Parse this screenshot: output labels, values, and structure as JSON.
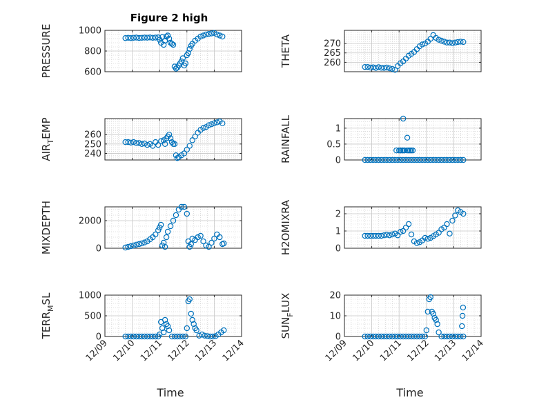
{
  "figure_title": "Figure 2 high",
  "colors": {
    "marker": "#0072BD",
    "axis": "#262626",
    "grid": "#c8c8c8"
  },
  "x_axis": {
    "label": "Time",
    "tick_labels": [
      "12/09",
      "12/10",
      "12/11",
      "12/12",
      "12/13",
      "12/14"
    ],
    "ticks_days": [
      9,
      10,
      11,
      12,
      13,
      14
    ],
    "range_days": [
      9,
      14
    ]
  },
  "chart_data": [
    {
      "type": "scatter",
      "ylabel": "PRESSURE",
      "ylim": [
        600,
        1000
      ],
      "yticks": [
        600,
        800,
        1000
      ],
      "ytick_labels": [
        "600",
        "800",
        "1000"
      ],
      "x": [
        9.75,
        9.85,
        9.95,
        10.05,
        10.15,
        10.25,
        10.35,
        10.45,
        10.55,
        10.65,
        10.75,
        10.85,
        10.95,
        11.0,
        11.05,
        11.1,
        11.15,
        11.2,
        11.25,
        11.3,
        11.35,
        11.4,
        11.45,
        11.5,
        11.55,
        11.6,
        11.65,
        11.7,
        11.75,
        11.8,
        11.85,
        11.9,
        11.95,
        12.0,
        12.05,
        12.1,
        12.15,
        12.2,
        12.3,
        12.4,
        12.5,
        12.6,
        12.7,
        12.8,
        12.9,
        13.0,
        13.1,
        13.2,
        13.3
      ],
      "y": [
        925,
        928,
        925,
        928,
        930,
        926,
        928,
        930,
        929,
        931,
        928,
        930,
        932,
        910,
        880,
        935,
        860,
        900,
        940,
        950,
        920,
        880,
        870,
        860,
        650,
        630,
        640,
        660,
        680,
        700,
        730,
        660,
        680,
        760,
        780,
        820,
        850,
        870,
        900,
        920,
        940,
        950,
        960,
        965,
        970,
        975,
        960,
        950,
        940
      ]
    },
    {
      "type": "scatter",
      "ylabel": "THETA",
      "ylim": [
        255,
        277
      ],
      "yticks": [
        260,
        265,
        270
      ],
      "ytick_labels": [
        "260",
        "265",
        "270"
      ],
      "x": [
        9.75,
        9.85,
        9.95,
        10.05,
        10.15,
        10.25,
        10.35,
        10.45,
        10.55,
        10.65,
        10.75,
        10.85,
        10.95,
        11.05,
        11.15,
        11.25,
        11.35,
        11.45,
        11.55,
        11.65,
        11.75,
        11.85,
        11.95,
        12.05,
        12.15,
        12.25,
        12.35,
        12.45,
        12.55,
        12.65,
        12.75,
        12.85,
        12.95,
        13.05,
        13.15,
        13.25,
        13.35
      ],
      "y": [
        257.5,
        257.5,
        257.2,
        257.3,
        257.0,
        257.4,
        257.1,
        257.0,
        257.2,
        256.8,
        256.5,
        256.0,
        258.0,
        259.5,
        260.5,
        262.0,
        263.5,
        264.5,
        265.5,
        267.0,
        268.5,
        269.5,
        270.0,
        271.0,
        272.5,
        274.5,
        273.0,
        272.0,
        271.5,
        271.0,
        270.5,
        270.5,
        270.2,
        270.5,
        270.8,
        271.0,
        270.8
      ]
    },
    {
      "type": "scatter",
      "ylabel": "AIR_TEMP",
      "ylim": [
        233,
        277
      ],
      "yticks": [
        240,
        250,
        260
      ],
      "ytick_labels": [
        "240",
        "250",
        "260"
      ],
      "x": [
        9.75,
        9.85,
        9.95,
        10.05,
        10.15,
        10.25,
        10.35,
        10.45,
        10.55,
        10.65,
        10.75,
        10.85,
        10.95,
        11.05,
        11.15,
        11.2,
        11.25,
        11.3,
        11.35,
        11.4,
        11.45,
        11.5,
        11.55,
        11.6,
        11.65,
        11.7,
        11.8,
        11.9,
        12.0,
        12.1,
        12.2,
        12.3,
        12.4,
        12.5,
        12.6,
        12.7,
        12.8,
        12.9,
        13.0,
        13.1,
        13.2,
        13.3
      ],
      "y": [
        252,
        252,
        251.5,
        252,
        251,
        251,
        250,
        250.5,
        249,
        250,
        248,
        252,
        249,
        253,
        254,
        250,
        256,
        258,
        260,
        256,
        252,
        250,
        250,
        238,
        235,
        236,
        238,
        240,
        244,
        248,
        254,
        258,
        262,
        265,
        267,
        268,
        270,
        271,
        272,
        273,
        274,
        272
      ]
    },
    {
      "type": "scatter",
      "ylabel": "RAINFALL",
      "ylim": [
        0,
        1.3
      ],
      "yticks": [
        0,
        0.5,
        1
      ],
      "ytick_labels": [
        "0",
        "0.5",
        "1"
      ],
      "x": [
        9.75,
        9.85,
        9.95,
        10.05,
        10.15,
        10.25,
        10.35,
        10.45,
        10.55,
        10.65,
        10.75,
        10.85,
        10.95,
        11.05,
        11.15,
        11.25,
        11.35,
        11.45,
        11.55,
        11.65,
        11.75,
        11.85,
        11.95,
        12.05,
        12.15,
        12.25,
        12.35,
        12.45,
        12.55,
        12.65,
        12.75,
        12.85,
        12.95,
        13.05,
        13.15,
        13.25,
        13.35,
        10.9,
        11.0,
        11.05,
        11.1,
        11.15,
        11.2,
        11.3,
        11.35,
        11.4,
        11.45,
        11.5,
        11.15,
        11.3
      ],
      "y": [
        0,
        0,
        0,
        0,
        0,
        0,
        0,
        0,
        0,
        0,
        0,
        0,
        0,
        0,
        0,
        0,
        0,
        0,
        0,
        0,
        0,
        0,
        0,
        0,
        0,
        0,
        0,
        0,
        0,
        0,
        0,
        0,
        0,
        0,
        0,
        0,
        0,
        0.3,
        0.3,
        0.3,
        0.3,
        0.3,
        0.3,
        0.3,
        0.3,
        0.3,
        0.3,
        0.3,
        1.3,
        0.7
      ]
    },
    {
      "type": "scatter",
      "ylabel": "MIXDEPTH",
      "ylim": [
        0,
        3000
      ],
      "yticks": [
        0,
        2000
      ],
      "ytick_labels": [
        "0",
        "2000"
      ],
      "x": [
        9.75,
        9.85,
        9.95,
        10.05,
        10.15,
        10.25,
        10.35,
        10.45,
        10.55,
        10.65,
        10.75,
        10.85,
        10.95,
        11.0,
        11.05,
        11.1,
        11.15,
        11.2,
        11.25,
        11.3,
        11.4,
        11.5,
        11.6,
        11.7,
        11.8,
        11.9,
        12.0,
        12.05,
        12.1,
        12.15,
        12.2,
        12.3,
        12.4,
        12.5,
        12.6,
        12.7,
        12.8,
        12.9,
        13.0,
        13.1,
        13.2,
        13.3,
        13.35
      ],
      "y": [
        50,
        100,
        150,
        200,
        260,
        300,
        350,
        420,
        500,
        650,
        800,
        1000,
        1300,
        1500,
        1700,
        200,
        400,
        100,
        800,
        1200,
        1600,
        2000,
        2400,
        2800,
        3000,
        3000,
        2500,
        500,
        100,
        300,
        700,
        600,
        800,
        900,
        500,
        200,
        100,
        400,
        700,
        1000,
        800,
        300,
        350
      ]
    },
    {
      "type": "scatter",
      "ylabel": "H2OMIXRA",
      "ylim": [
        0,
        2.4
      ],
      "yticks": [
        0,
        1,
        2
      ],
      "ytick_labels": [
        "0",
        "1",
        "2"
      ],
      "x": [
        9.75,
        9.85,
        9.95,
        10.05,
        10.15,
        10.25,
        10.35,
        10.45,
        10.55,
        10.65,
        10.75,
        10.85,
        10.95,
        11.05,
        11.15,
        11.25,
        11.35,
        11.45,
        11.55,
        11.65,
        11.75,
        11.85,
        11.95,
        12.05,
        12.15,
        12.25,
        12.35,
        12.45,
        12.55,
        12.65,
        12.75,
        12.85,
        12.95,
        13.05,
        13.15,
        13.25,
        13.35
      ],
      "y": [
        0.72,
        0.72,
        0.72,
        0.72,
        0.72,
        0.72,
        0.72,
        0.75,
        0.78,
        0.75,
        0.8,
        0.85,
        0.75,
        0.95,
        1.0,
        1.2,
        1.4,
        0.8,
        0.4,
        0.3,
        0.35,
        0.45,
        0.6,
        0.55,
        0.6,
        0.7,
        0.8,
        0.9,
        1.1,
        1.2,
        1.4,
        0.85,
        1.6,
        1.9,
        2.2,
        2.1,
        2.0
      ]
    },
    {
      "type": "scatter",
      "ylabel": "TERR_MSL",
      "ylim": [
        0,
        1000
      ],
      "yticks": [
        0,
        500,
        1000
      ],
      "ytick_labels": [
        "0",
        "500",
        "1000"
      ],
      "x": [
        9.75,
        9.85,
        9.95,
        10.05,
        10.15,
        10.25,
        10.35,
        10.45,
        10.55,
        10.65,
        10.75,
        10.85,
        10.95,
        11.0,
        11.05,
        11.1,
        11.15,
        11.2,
        11.25,
        11.3,
        11.35,
        11.45,
        11.55,
        11.65,
        11.75,
        11.85,
        11.95,
        12.0,
        12.05,
        12.1,
        12.15,
        12.2,
        12.25,
        12.3,
        12.35,
        12.45,
        12.55,
        12.65,
        12.75,
        12.85,
        12.95,
        13.05,
        13.15,
        13.25,
        13.35
      ],
      "y": [
        0,
        0,
        0,
        0,
        0,
        0,
        0,
        0,
        0,
        0,
        0,
        0,
        0,
        50,
        350,
        200,
        100,
        400,
        300,
        250,
        150,
        0,
        0,
        0,
        0,
        0,
        0,
        200,
        850,
        900,
        550,
        400,
        300,
        200,
        150,
        20,
        50,
        20,
        10,
        0,
        0,
        10,
        50,
        100,
        150
      ]
    },
    {
      "type": "scatter",
      "ylabel": "SUN_FLUX",
      "ylim": [
        0,
        20
      ],
      "yticks": [
        0,
        10,
        20
      ],
      "ytick_labels": [
        "0",
        "10",
        "20"
      ],
      "x": [
        9.75,
        9.85,
        9.95,
        10.05,
        10.15,
        10.25,
        10.35,
        10.45,
        10.55,
        10.65,
        10.75,
        10.85,
        10.95,
        11.05,
        11.15,
        11.25,
        11.35,
        11.45,
        11.55,
        11.65,
        11.75,
        11.85,
        11.95,
        12.0,
        12.05,
        12.1,
        12.15,
        12.2,
        12.25,
        12.3,
        12.35,
        12.4,
        12.45,
        12.55,
        12.65,
        12.75,
        12.85,
        12.95,
        13.05,
        13.15,
        13.25,
        13.35,
        13.3,
        13.32,
        13.34
      ],
      "y": [
        0,
        0,
        0,
        0,
        0,
        0,
        0,
        0,
        0,
        0,
        0,
        0,
        0,
        0,
        0,
        0,
        0,
        0,
        0,
        0,
        0,
        0,
        0,
        3,
        12,
        18,
        19,
        12,
        11,
        9,
        8,
        6,
        2,
        0,
        0,
        0,
        0,
        0,
        0,
        0,
        0,
        0,
        5,
        10,
        14
      ]
    }
  ]
}
